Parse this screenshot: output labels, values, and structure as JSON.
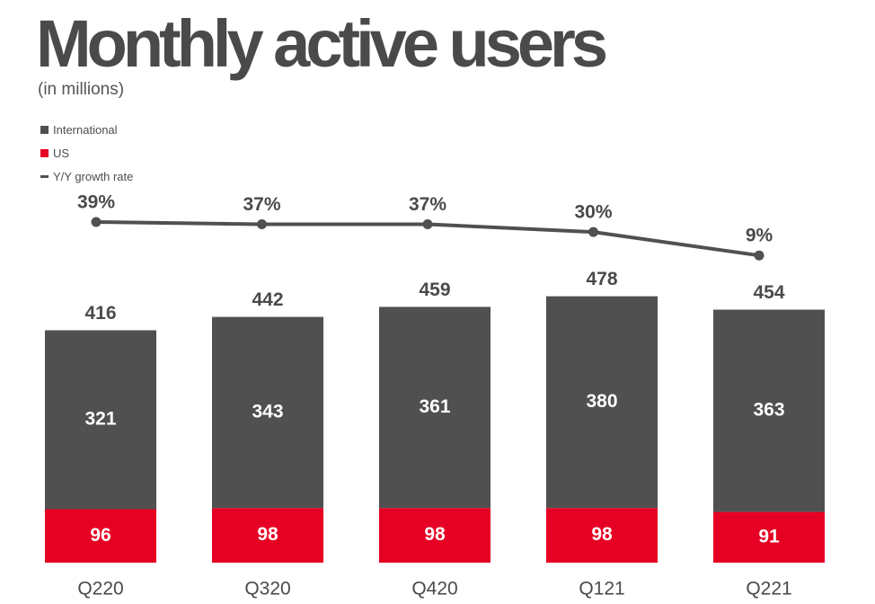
{
  "title": "Monthly active users",
  "subtitle": "(in millions)",
  "legend": [
    {
      "label": "International",
      "color": "#505050",
      "kind": "square"
    },
    {
      "label": "US",
      "color": "#e60023",
      "kind": "square"
    },
    {
      "label": "Y/Y growth rate",
      "color": "#505050",
      "kind": "line"
    }
  ],
  "chart_data": {
    "type": "bar",
    "stacked": true,
    "title": "Monthly active users",
    "subtitle": "(in millions)",
    "categories": [
      "Q220",
      "Q320",
      "Q420",
      "Q121",
      "Q221"
    ],
    "series": [
      {
        "name": "US",
        "color": "#e60023",
        "values": [
          96,
          98,
          98,
          98,
          91
        ]
      },
      {
        "name": "International",
        "color": "#505050",
        "values": [
          321,
          343,
          361,
          380,
          363
        ]
      }
    ],
    "totals": [
      416,
      442,
      459,
      478,
      454
    ],
    "line_series": {
      "name": "Y/Y growth rate",
      "color": "#505050",
      "values": [
        39,
        37,
        37,
        30,
        9
      ],
      "labels": [
        "39%",
        "37%",
        "37%",
        "30%",
        "9%"
      ]
    },
    "ylim": [
      0,
      478
    ],
    "legend_position": "top-left"
  }
}
